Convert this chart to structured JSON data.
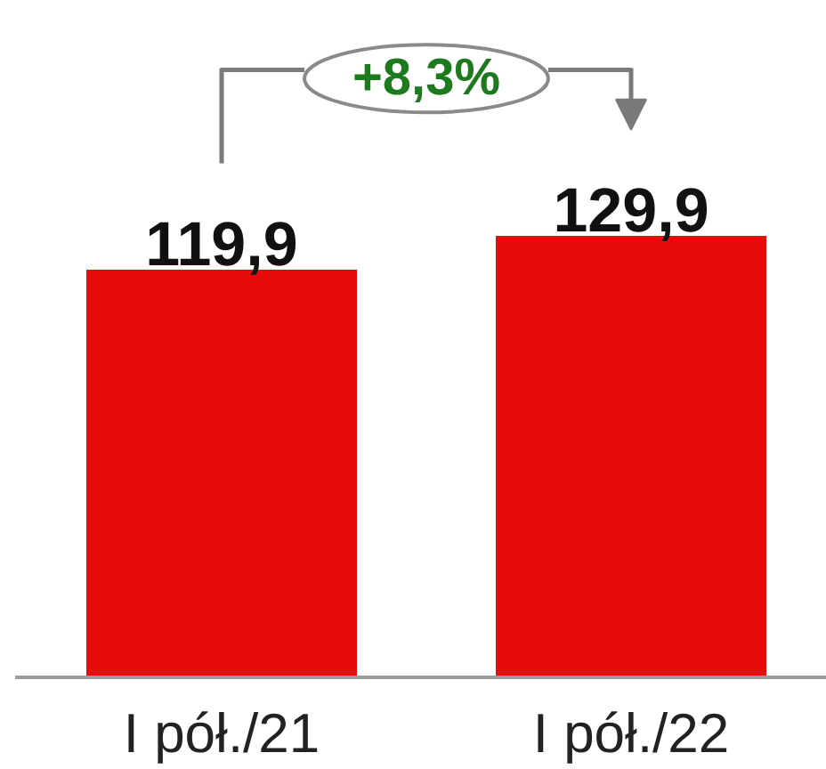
{
  "chart_data": {
    "type": "bar",
    "categories": [
      "I pół./21",
      "I pół./22"
    ],
    "values": [
      119.9,
      129.9
    ],
    "color": "#e60c0c",
    "value_labels": [
      "119,9",
      "129,9"
    ],
    "annotations": [
      "+8,3%"
    ],
    "tick_labels": "x"
  }
}
